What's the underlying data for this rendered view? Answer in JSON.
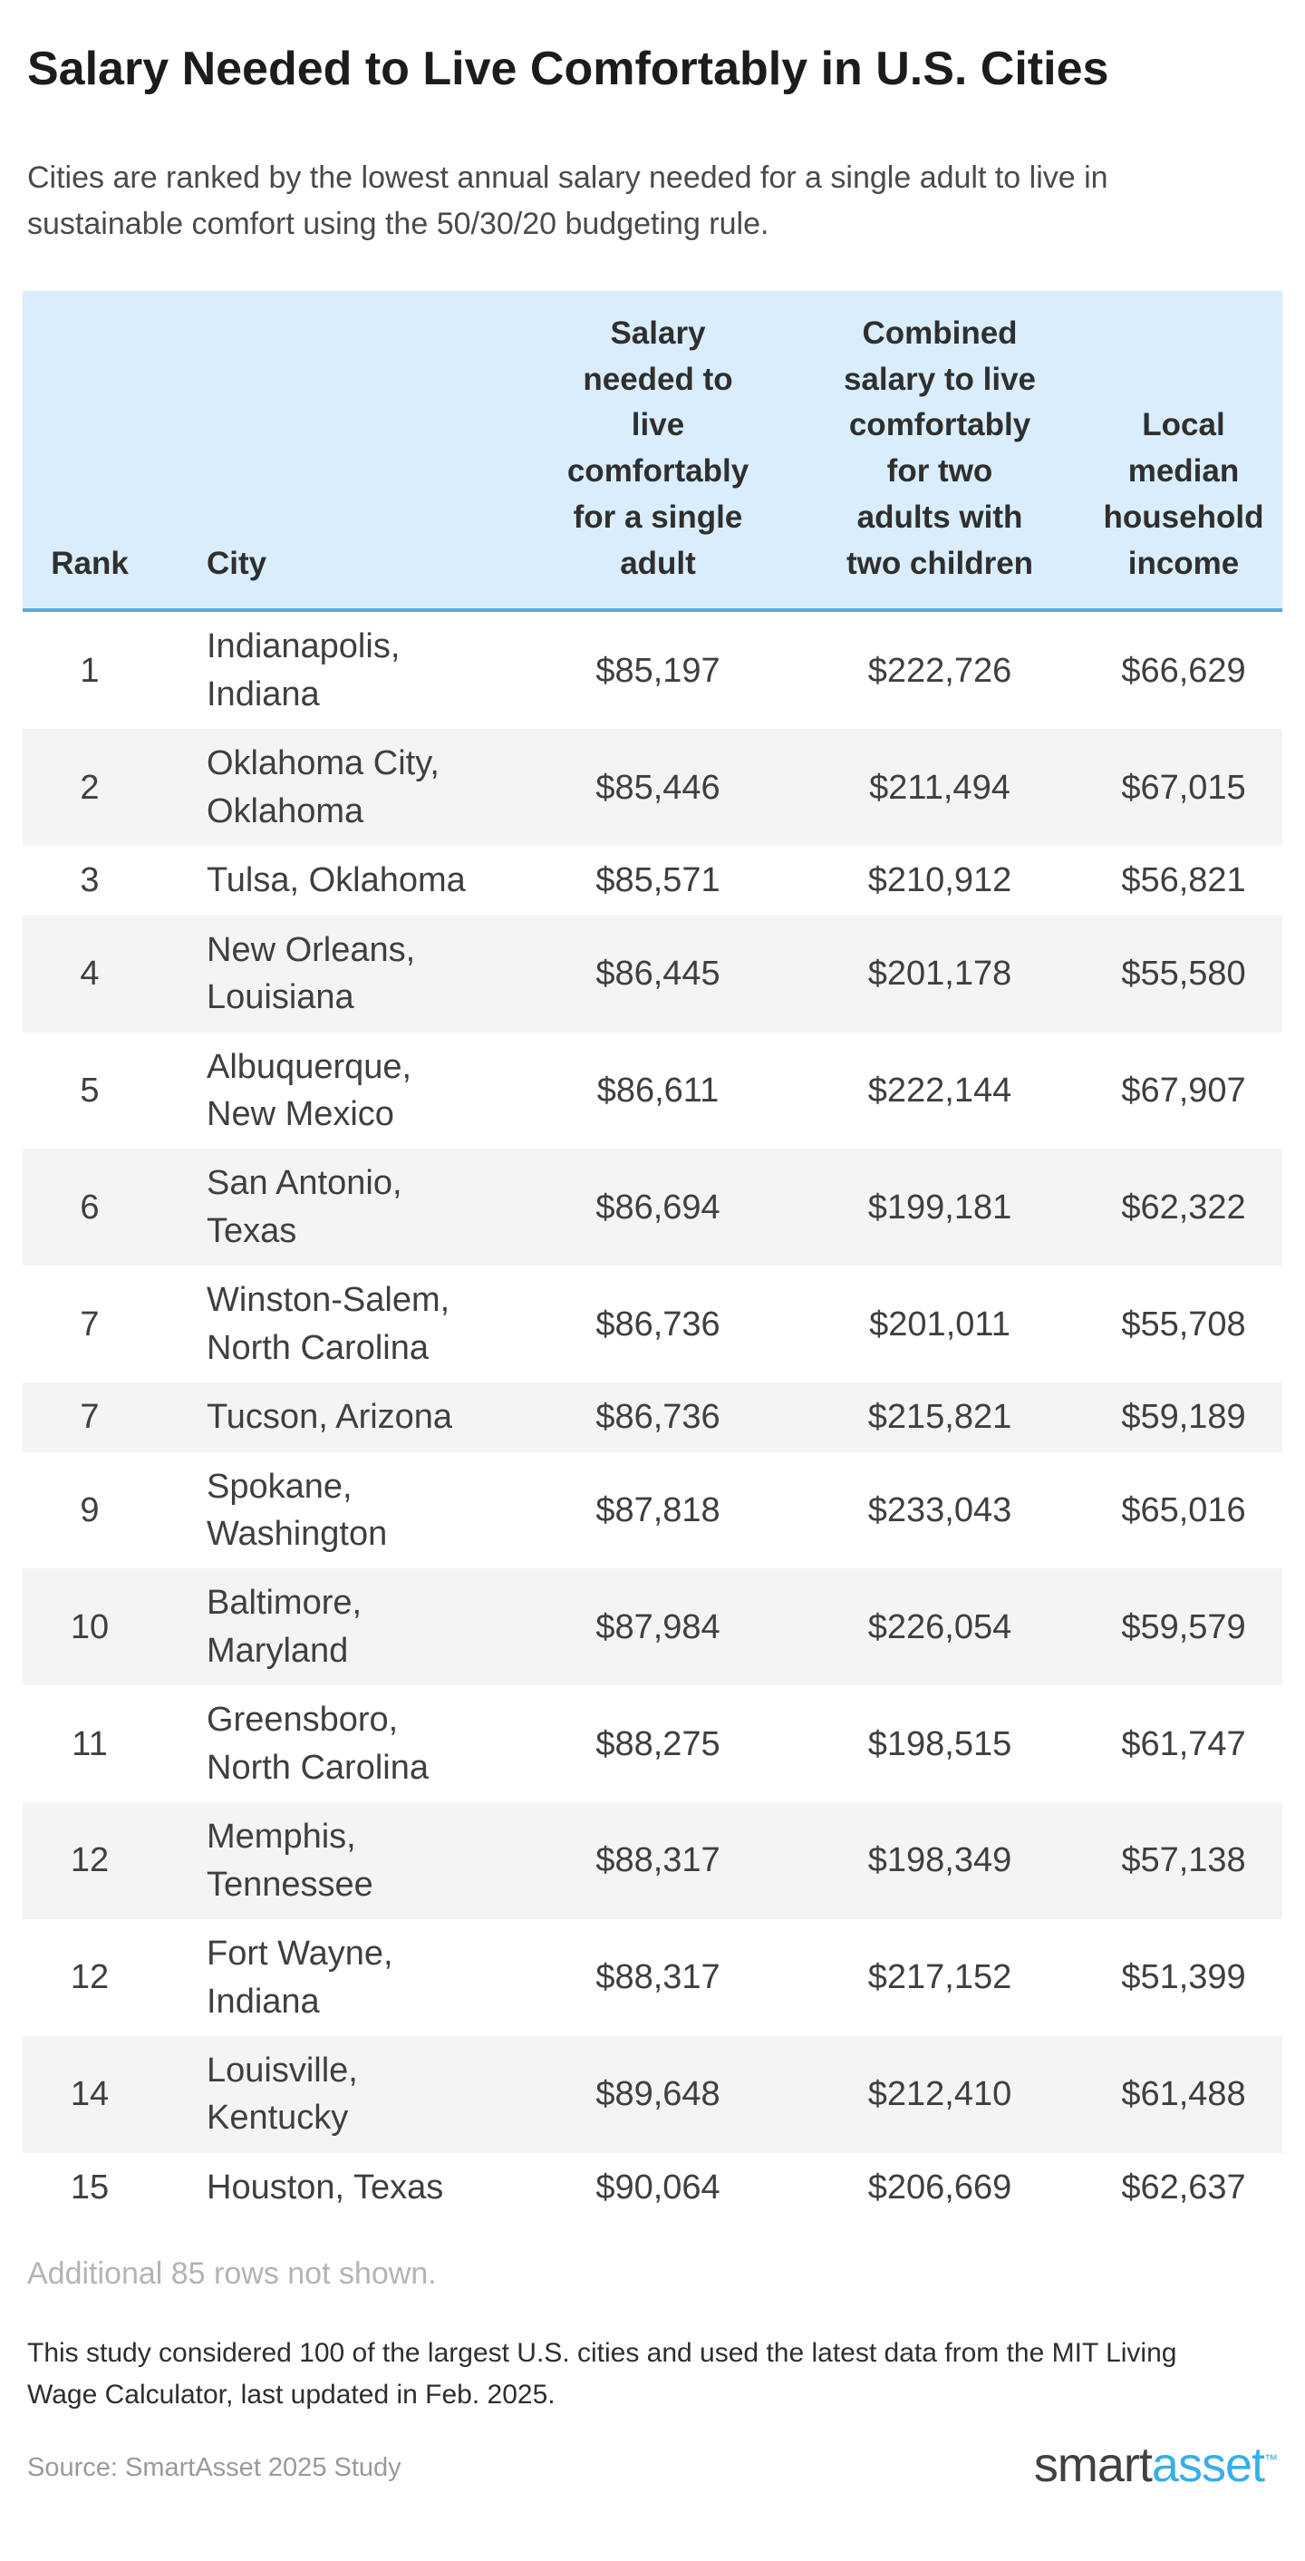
{
  "header": {
    "title": "Salary Needed to Live Comfortably in U.S. Cities",
    "subtitle": "Cities are ranked by the lowest annual salary needed for a single adult to live in sustainable comfort using the 50/30/20 budgeting rule."
  },
  "chart_data": {
    "type": "table",
    "title": "Salary Needed to Live Comfortably in U.S. Cities",
    "columns": [
      "Rank",
      "City",
      "Salary needed to live comfortably for a single adult",
      "Combined salary to live comfortably for two adults with two children",
      "Local median household income"
    ],
    "rows": [
      {
        "rank": "1",
        "city": "Indianapolis, Indiana",
        "single": "$85,197",
        "combined": "$222,726",
        "median": "$66,629"
      },
      {
        "rank": "2",
        "city": "Oklahoma City, Oklahoma",
        "single": "$85,446",
        "combined": "$211,494",
        "median": "$67,015"
      },
      {
        "rank": "3",
        "city": "Tulsa, Oklahoma",
        "single": "$85,571",
        "combined": "$210,912",
        "median": "$56,821"
      },
      {
        "rank": "4",
        "city": "New Orleans, Louisiana",
        "single": "$86,445",
        "combined": "$201,178",
        "median": "$55,580"
      },
      {
        "rank": "5",
        "city": "Albuquerque, New Mexico",
        "single": "$86,611",
        "combined": "$222,144",
        "median": "$67,907"
      },
      {
        "rank": "6",
        "city": "San Antonio, Texas",
        "single": "$86,694",
        "combined": "$199,181",
        "median": "$62,322"
      },
      {
        "rank": "7",
        "city": "Winston-Salem, North Carolina",
        "single": "$86,736",
        "combined": "$201,011",
        "median": "$55,708"
      },
      {
        "rank": "7",
        "city": "Tucson, Arizona",
        "single": "$86,736",
        "combined": "$215,821",
        "median": "$59,189"
      },
      {
        "rank": "9",
        "city": "Spokane, Washington",
        "single": "$87,818",
        "combined": "$233,043",
        "median": "$65,016"
      },
      {
        "rank": "10",
        "city": "Baltimore, Maryland",
        "single": "$87,984",
        "combined": "$226,054",
        "median": "$59,579"
      },
      {
        "rank": "11",
        "city": "Greensboro, North Carolina",
        "single": "$88,275",
        "combined": "$198,515",
        "median": "$61,747"
      },
      {
        "rank": "12",
        "city": "Memphis, Tennessee",
        "single": "$88,317",
        "combined": "$198,349",
        "median": "$57,138"
      },
      {
        "rank": "12",
        "city": "Fort Wayne, Indiana",
        "single": "$88,317",
        "combined": "$217,152",
        "median": "$51,399"
      },
      {
        "rank": "14",
        "city": "Louisville, Kentucky",
        "single": "$89,648",
        "combined": "$212,410",
        "median": "$61,488"
      },
      {
        "rank": "15",
        "city": "Houston, Texas",
        "single": "$90,064",
        "combined": "$206,669",
        "median": "$62,637"
      }
    ]
  },
  "table": {
    "footnote": "Additional 85 rows not shown."
  },
  "footer": {
    "note": "This study considered 100 of the largest U.S. cities and used the latest data from the MIT Living Wage Calculator, last updated in Feb. 2025.",
    "source": "Source: SmartAsset 2025 Study",
    "logo": {
      "part1": "smart",
      "part2": "asset",
      "tm": "™"
    }
  },
  "colors": {
    "header_bg": "#d9edfc",
    "header_border": "#54acdf",
    "row_alt": "#f4f4f4",
    "logo_blue": "#36afe8",
    "title_text": "#1c1c1c"
  }
}
